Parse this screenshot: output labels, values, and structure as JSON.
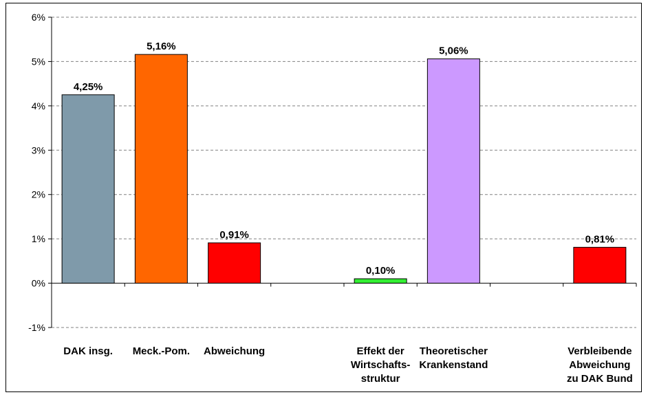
{
  "chart_data": {
    "type": "bar",
    "categories": [
      [
        "DAK insg."
      ],
      [
        "Meck.-Pom."
      ],
      [
        "Abweichung"
      ],
      [
        ""
      ],
      [
        "Effekt der",
        "Wirtschafts-",
        "struktur"
      ],
      [
        "Theoretischer",
        "Krankenstand"
      ],
      [
        ""
      ],
      [
        "Verbleibende",
        "Abweichung",
        "zu DAK Bund"
      ]
    ],
    "values": [
      4.25,
      5.16,
      0.91,
      null,
      0.1,
      5.06,
      null,
      0.81
    ],
    "data_labels": [
      "4,25%",
      "5,16%",
      "0,91%",
      "",
      "0,10%",
      "5,06%",
      "",
      "0,81%"
    ],
    "colors": [
      "#7f9aaa",
      "#ff6600",
      "#ff0000",
      "",
      "#33ee33",
      "#cc99ff",
      "",
      "#ff0000"
    ],
    "yticks": [
      "-1%",
      "0%",
      "1%",
      "2%",
      "3%",
      "4%",
      "5%",
      "6%"
    ],
    "ylim": [
      -1,
      6
    ],
    "grid": "horizontal dashed",
    "legend": "none"
  }
}
